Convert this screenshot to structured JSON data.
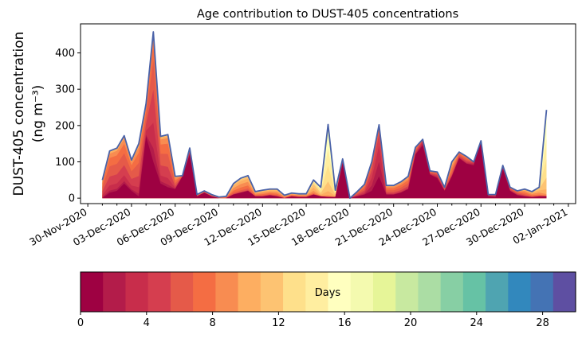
{
  "chart_data": {
    "type": "area",
    "title": "Age contribution to DUST-405 concentrations",
    "xlabel": "",
    "ylabel_line1": "DUST-405 concentration",
    "ylabel_line2": "(ng m⁻³)",
    "ylim": [
      -15,
      480
    ],
    "yticks": [
      0,
      100,
      200,
      300,
      400
    ],
    "x_start": "2020-12-01",
    "x_step_hours": 12,
    "xlim_hours": [
      -36,
      780
    ],
    "xtick_labels": [
      "30-Nov-2020",
      "03-Dec-2020",
      "06-Dec-2020",
      "09-Dec-2020",
      "12-Dec-2020",
      "15-Dec-2020",
      "18-Dec-2020",
      "21-Dec-2020",
      "24-Dec-2020",
      "27-Dec-2020",
      "30-Dec-2020",
      "02-Jan-2021"
    ],
    "xtick_hours": [
      -24,
      48,
      120,
      192,
      264,
      336,
      408,
      480,
      552,
      624,
      696,
      768
    ],
    "total": [
      50,
      130,
      138,
      172,
      105,
      150,
      260,
      458,
      170,
      175,
      60,
      62,
      138,
      10,
      20,
      10,
      3,
      5,
      40,
      55,
      62,
      18,
      22,
      25,
      25,
      8,
      14,
      12,
      12,
      50,
      30,
      203,
      22,
      108,
      0,
      18,
      38,
      100,
      202,
      35,
      35,
      45,
      60,
      140,
      162,
      75,
      72,
      30,
      100,
      127,
      115,
      100,
      158,
      10,
      10,
      90,
      30,
      20,
      25,
      18,
      30,
      243
    ],
    "young": [
      0,
      15,
      20,
      40,
      20,
      5,
      170,
      100,
      40,
      30,
      25,
      60,
      120,
      5,
      15,
      5,
      0,
      0,
      10,
      15,
      20,
      5,
      5,
      8,
      5,
      0,
      5,
      3,
      3,
      10,
      5,
      3,
      3,
      95,
      0,
      5,
      10,
      20,
      60,
      10,
      10,
      15,
      25,
      120,
      145,
      65,
      55,
      20,
      60,
      110,
      95,
      90,
      155,
      5,
      3,
      80,
      20,
      8,
      5,
      3,
      5,
      5
    ],
    "mid_peak_day": [
      6,
      6,
      6,
      6,
      6,
      6,
      6,
      5,
      6,
      6,
      7,
      7,
      5,
      8,
      8,
      8,
      8,
      8,
      9,
      9,
      9,
      9,
      9,
      9,
      9,
      9,
      9,
      9,
      9,
      11,
      13,
      14,
      13,
      4,
      4,
      6,
      6,
      4,
      3,
      7,
      7,
      7,
      7,
      6,
      3,
      6,
      5,
      6,
      8,
      6,
      6,
      3,
      2,
      4,
      4,
      3,
      6,
      6,
      8,
      9,
      10,
      14
    ],
    "colorbar": {
      "label": "Days",
      "min": 0,
      "max": 30,
      "ticks": [
        0,
        4,
        8,
        12,
        16,
        20,
        24,
        28
      ],
      "colors": [
        "#9e0142",
        "#b31c4a",
        "#c82d4b",
        "#d53e4f",
        "#e55a49",
        "#f46d43",
        "#f88c51",
        "#fdae61",
        "#fdc372",
        "#fee08b",
        "#ffeea0",
        "#ffffbf",
        "#f4faaf",
        "#e6f598",
        "#c8e9a0",
        "#abdda4",
        "#87cfa4",
        "#66c2a5",
        "#4fa4b1",
        "#3288bd",
        "#4473b4",
        "#5e4fa2"
      ]
    }
  }
}
